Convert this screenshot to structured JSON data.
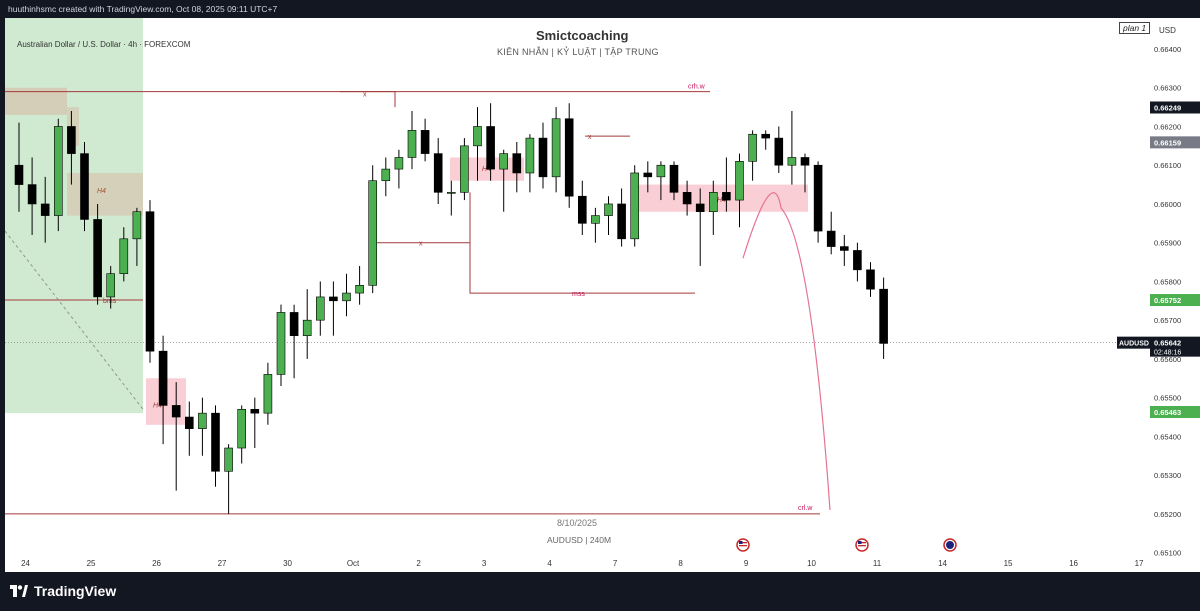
{
  "header": {
    "created_text": "huuthinhsmc created with TradingView.com, Oct 08, 2025 09:11 UTC+7"
  },
  "symbol_title": "Australian Dollar / U.S. Dollar · 4h · FOREXCOM",
  "watermark": {
    "title": "Smictcoaching",
    "subtitle": "KIÊN NHẪN   |   KỶ LUẬT   |  TẬP TRUNG",
    "date": "8/10/2025",
    "pair": "AUDUSD  |  240M"
  },
  "plan_label": "plan 1",
  "currency": "USD",
  "footer": {
    "brand": "TradingView"
  },
  "colors": {
    "up": "#4caf50",
    "down": "#000000",
    "zone_green": "#c8e6c9",
    "zone_red": "#f8c9cf",
    "zone_brown": "#d7b9a5",
    "line_red": "#a33a3a",
    "curve": "#e57390",
    "current_label": "#131722",
    "green_label": "#4caf50",
    "gray_label": "#787b86"
  },
  "chart_data": {
    "type": "candlestick",
    "timeframe": "4h",
    "ylim": [
      0.6505,
      0.6648
    ],
    "y_ticks": [
      0.651,
      0.652,
      0.653,
      0.654,
      0.655,
      0.656,
      0.657,
      0.658,
      0.659,
      0.66,
      0.661,
      0.662,
      0.663,
      0.664
    ],
    "y_tick_labels": [
      "0.65100",
      "0.65200",
      "0.65300",
      "0.65400",
      "0.65500",
      "0.65600",
      "0.65700",
      "0.65800",
      "0.65900",
      "0.66000",
      "0.66100",
      "0.66200",
      "0.66300",
      "0.66400"
    ],
    "x_ticks": [
      "24",
      "25",
      "26",
      "27",
      "30",
      "Oct",
      "2",
      "3",
      "4",
      "7",
      "8",
      "9",
      "10",
      "11",
      "14",
      "15",
      "16",
      "17"
    ],
    "x_tick_index": [
      0.5,
      5.5,
      10.5,
      15.5,
      20.5,
      25.5,
      30.5,
      35.5,
      40.5,
      45.5,
      50.5,
      55.5,
      60.5,
      65.5,
      70.5,
      75.5,
      80.5,
      85.5
    ],
    "candles": [
      [
        0.661,
        0.6621,
        0.6598,
        0.6605
      ],
      [
        0.6605,
        0.6612,
        0.6592,
        0.66
      ],
      [
        0.66,
        0.6607,
        0.659,
        0.6597
      ],
      [
        0.6597,
        0.6622,
        0.6593,
        0.662
      ],
      [
        0.662,
        0.6624,
        0.6605,
        0.6613
      ],
      [
        0.6613,
        0.6616,
        0.6593,
        0.6596
      ],
      [
        0.6596,
        0.66,
        0.6574,
        0.6576
      ],
      [
        0.6576,
        0.6584,
        0.6573,
        0.6582
      ],
      [
        0.6582,
        0.6594,
        0.658,
        0.6591
      ],
      [
        0.6591,
        0.6599,
        0.6584,
        0.6598
      ],
      [
        0.6598,
        0.6601,
        0.6559,
        0.6562
      ],
      [
        0.6562,
        0.6566,
        0.6538,
        0.6548
      ],
      [
        0.6548,
        0.6554,
        0.6526,
        0.6545
      ],
      [
        0.6545,
        0.6549,
        0.6535,
        0.6542
      ],
      [
        0.6542,
        0.655,
        0.6535,
        0.6546
      ],
      [
        0.6546,
        0.6548,
        0.6527,
        0.6531
      ],
      [
        0.6531,
        0.6538,
        0.652,
        0.6537
      ],
      [
        0.6537,
        0.6548,
        0.6533,
        0.6547
      ],
      [
        0.6547,
        0.655,
        0.6537,
        0.6546
      ],
      [
        0.6546,
        0.6559,
        0.6543,
        0.6556
      ],
      [
        0.6556,
        0.6574,
        0.6553,
        0.6572
      ],
      [
        0.6572,
        0.6574,
        0.6555,
        0.6566
      ],
      [
        0.6566,
        0.6578,
        0.656,
        0.657
      ],
      [
        0.657,
        0.658,
        0.6566,
        0.6576
      ],
      [
        0.6576,
        0.658,
        0.6566,
        0.6575
      ],
      [
        0.6575,
        0.6582,
        0.6571,
        0.6577
      ],
      [
        0.6577,
        0.6584,
        0.6574,
        0.6579
      ],
      [
        0.6579,
        0.661,
        0.6577,
        0.6606
      ],
      [
        0.6606,
        0.6612,
        0.6602,
        0.6609
      ],
      [
        0.6609,
        0.6614,
        0.6604,
        0.6612
      ],
      [
        0.6612,
        0.6624,
        0.6609,
        0.6619
      ],
      [
        0.6619,
        0.6622,
        0.6611,
        0.6613
      ],
      [
        0.6613,
        0.6617,
        0.66,
        0.6603
      ],
      [
        0.6603,
        0.6606,
        0.6597,
        0.6603
      ],
      [
        0.6603,
        0.6617,
        0.6601,
        0.6615
      ],
      [
        0.6615,
        0.6625,
        0.6606,
        0.662
      ],
      [
        0.662,
        0.6626,
        0.6606,
        0.6609
      ],
      [
        0.6609,
        0.6614,
        0.6598,
        0.6613
      ],
      [
        0.6613,
        0.6616,
        0.6603,
        0.6608
      ],
      [
        0.6608,
        0.6618,
        0.6603,
        0.6617
      ],
      [
        0.6617,
        0.6621,
        0.6604,
        0.6607
      ],
      [
        0.6607,
        0.6625,
        0.6603,
        0.6622
      ],
      [
        0.6622,
        0.6626,
        0.6599,
        0.6602
      ],
      [
        0.6602,
        0.6606,
        0.6592,
        0.6595
      ],
      [
        0.6595,
        0.6599,
        0.659,
        0.6597
      ],
      [
        0.6597,
        0.6602,
        0.6592,
        0.66
      ],
      [
        0.66,
        0.6604,
        0.6589,
        0.6591
      ],
      [
        0.6591,
        0.661,
        0.6589,
        0.6608
      ],
      [
        0.6608,
        0.6611,
        0.6603,
        0.6607
      ],
      [
        0.6607,
        0.6611,
        0.6601,
        0.661
      ],
      [
        0.661,
        0.6611,
        0.6601,
        0.6603
      ],
      [
        0.6603,
        0.6606,
        0.6597,
        0.66
      ],
      [
        0.66,
        0.6604,
        0.6584,
        0.6598
      ],
      [
        0.6598,
        0.6606,
        0.6592,
        0.6603
      ],
      [
        0.6603,
        0.6612,
        0.6598,
        0.6601
      ],
      [
        0.6601,
        0.6613,
        0.6594,
        0.6611
      ],
      [
        0.6611,
        0.6619,
        0.6606,
        0.6618
      ],
      [
        0.6618,
        0.6619,
        0.6614,
        0.6617
      ],
      [
        0.6617,
        0.662,
        0.6608,
        0.661
      ],
      [
        0.661,
        0.6624,
        0.6605,
        0.6612
      ],
      [
        0.6612,
        0.6613,
        0.6603,
        0.661
      ],
      [
        0.661,
        0.6611,
        0.659,
        0.6593
      ],
      [
        0.6593,
        0.6598,
        0.6587,
        0.6589
      ],
      [
        0.6589,
        0.6592,
        0.6584,
        0.6588
      ],
      [
        0.6588,
        0.659,
        0.658,
        0.6583
      ],
      [
        0.6583,
        0.6585,
        0.6576,
        0.6578
      ],
      [
        0.6578,
        0.6581,
        0.656,
        0.6564
      ]
    ],
    "price_labels": [
      {
        "text": "0.66249",
        "value": 0.66249,
        "style": "black"
      },
      {
        "text": "0.66159",
        "value": 0.66159,
        "style": "gray"
      },
      {
        "text": "0.65752",
        "value": 0.65752,
        "style": "green"
      },
      {
        "text": "0.65463",
        "value": 0.65463,
        "style": "green"
      }
    ],
    "current": {
      "symbol": "AUDUSD",
      "price": "0.65642",
      "countdown": "02:48:16",
      "value": 0.65642
    },
    "annotations": {
      "crh": {
        "text": "crh.w",
        "value": 0.6629
      },
      "crl": {
        "text": "crl.w",
        "value": 0.652
      },
      "bms": {
        "text": "bms",
        "value": 0.65752
      },
      "mss": {
        "text": "mss",
        "value": 0.6577
      },
      "h4_labels": [
        "H4",
        "H4",
        "H4",
        "H4"
      ],
      "x_labels": [
        "x",
        "x",
        "x"
      ]
    },
    "event_markers": [
      "us-flag-icon",
      "us-flag-icon",
      "au-flag-icon"
    ]
  }
}
